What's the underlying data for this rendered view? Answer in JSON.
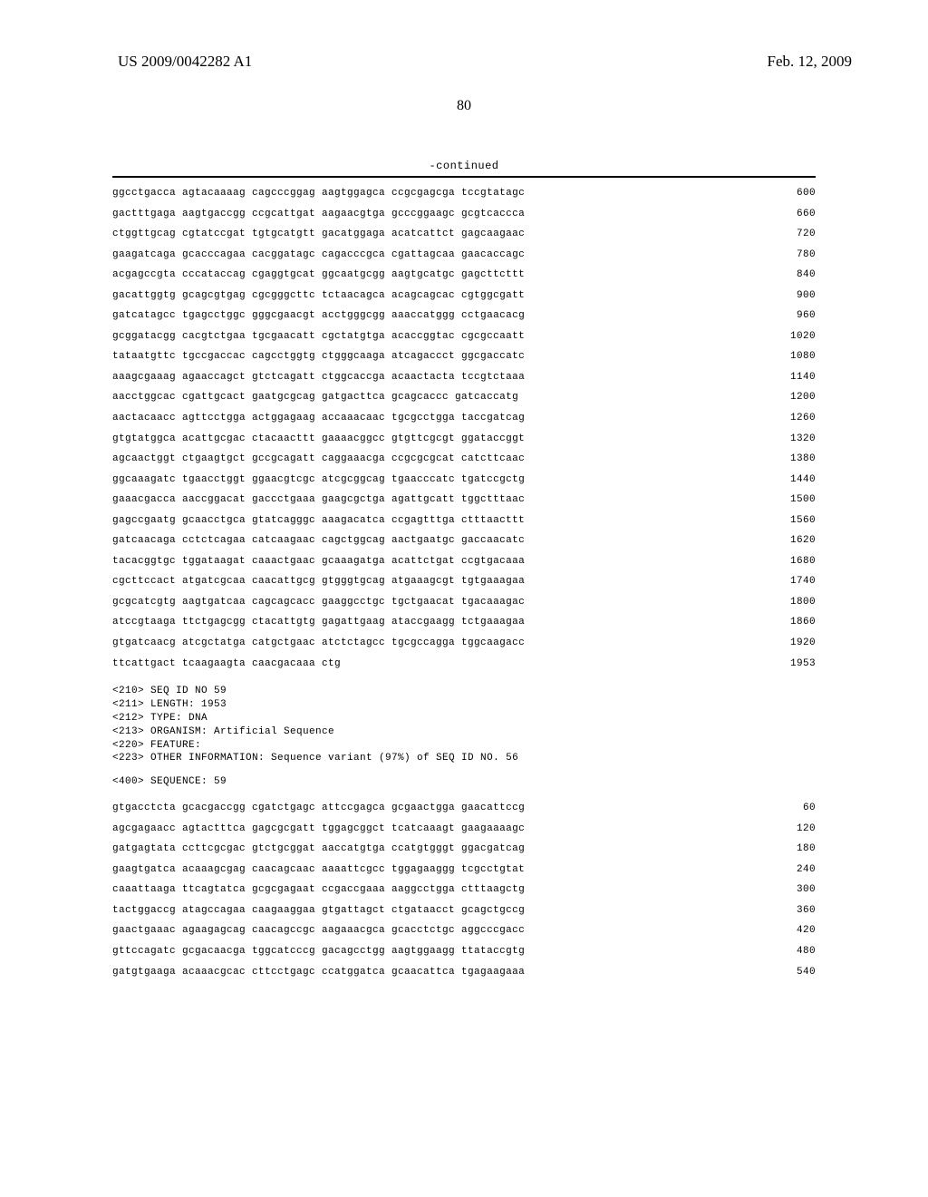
{
  "header": {
    "publication_number": "US 2009/0042282 A1",
    "date": "Feb. 12, 2009"
  },
  "page_number": "80",
  "continued_label": "-continued",
  "sequence1": {
    "lines": [
      {
        "groups": "ggcctgacca agtacaaaag cagcccggag aagtggagca ccgcgagcga tccgtatagc",
        "num": "600"
      },
      {
        "groups": "gactttgaga aagtgaccgg ccgcattgat aagaacgtga gcccggaagc gcgtcaccca",
        "num": "660"
      },
      {
        "groups": "ctggttgcag cgtatccgat tgtgcatgtt gacatggaga acatcattct gagcaagaac",
        "num": "720"
      },
      {
        "groups": "gaagatcaga gcacccagaa cacggatagc cagacccgca cgattagcaa gaacaccagc",
        "num": "780"
      },
      {
        "groups": "acgagccgta cccataccag cgaggtgcat ggcaatgcgg aagtgcatgc gagcttcttt",
        "num": "840"
      },
      {
        "groups": "gacattggtg gcagcgtgag cgcgggcttc tctaacagca acagcagcac cgtggcgatt",
        "num": "900"
      },
      {
        "groups": "gatcatagcc tgagcctggc gggcgaacgt acctgggcgg aaaccatggg cctgaacacg",
        "num": "960"
      },
      {
        "groups": "gcggatacgg cacgtctgaa tgcgaacatt cgctatgtga acaccggtac cgcgccaatt",
        "num": "1020"
      },
      {
        "groups": "tataatgttc tgccgaccac cagcctggtg ctgggcaaga atcagaccct ggcgaccatc",
        "num": "1080"
      },
      {
        "groups": "aaagcgaaag agaaccagct gtctcagatt ctggcaccga acaactacta tccgtctaaa",
        "num": "1140"
      },
      {
        "groups": "aacctggcac cgattgcact gaatgcgcag gatgacttca gcagcaccc gatcaccatg",
        "num": "1200"
      },
      {
        "groups": "aactacaacc agttcctgga actggagaag accaaacaac tgcgcctgga taccgatcag",
        "num": "1260"
      },
      {
        "groups": "gtgtatggca acattgcgac ctacaacttt gaaaacggcc gtgttcgcgt ggataccggt",
        "num": "1320"
      },
      {
        "groups": "agcaactggt ctgaagtgct gccgcagatt caggaaacga ccgcgcgcat catcttcaac",
        "num": "1380"
      },
      {
        "groups": "ggcaaagatc tgaacctggt ggaacgtcgc atcgcggcag tgaacccatc tgatccgctg",
        "num": "1440"
      },
      {
        "groups": "gaaacgacca aaccggacat gaccctgaaa gaagcgctga agattgcatt tggctttaac",
        "num": "1500"
      },
      {
        "groups": "gagccgaatg gcaacctgca gtatcagggc aaagacatca ccgagtttga ctttaacttt",
        "num": "1560"
      },
      {
        "groups": "gatcaacaga cctctcagaa catcaagaac cagctggcag aactgaatgc gaccaacatc",
        "num": "1620"
      },
      {
        "groups": "tacacggtgc tggataagat caaactgaac gcaaagatga acattctgat ccgtgacaaa",
        "num": "1680"
      },
      {
        "groups": "cgcttccact atgatcgcaa caacattgcg gtgggtgcag atgaaagcgt tgtgaaagaa",
        "num": "1740"
      },
      {
        "groups": "gcgcatcgtg aagtgatcaa cagcagcacc gaaggcctgc tgctgaacat tgacaaagac",
        "num": "1800"
      },
      {
        "groups": "atccgtaaga ttctgagcgg ctacattgtg gagattgaag ataccgaagg tctgaaagaa",
        "num": "1860"
      },
      {
        "groups": "gtgatcaacg atcgctatga catgctgaac atctctagcc tgcgccagga tggcaagacc",
        "num": "1920"
      },
      {
        "groups": "ttcattgact tcaagaagta caacgacaaa ctg",
        "num": "1953"
      }
    ]
  },
  "annotation": {
    "lines": [
      "<210> SEQ ID NO 59",
      "<211> LENGTH: 1953",
      "<212> TYPE: DNA",
      "<213> ORGANISM: Artificial Sequence",
      "<220> FEATURE:",
      "<223> OTHER INFORMATION: Sequence variant (97%) of SEQ ID NO. 56"
    ]
  },
  "sequence_header": "<400> SEQUENCE: 59",
  "sequence2": {
    "lines": [
      {
        "groups": "gtgacctcta gcacgaccgg cgatctgagc attccgagca gcgaactgga gaacattccg",
        "num": "60"
      },
      {
        "groups": "agcgagaacc agtactttca gagcgcgatt tggagcggct tcatcaaagt gaagaaaagc",
        "num": "120"
      },
      {
        "groups": "gatgagtata ccttcgcgac gtctgcggat aaccatgtga ccatgtgggt ggacgatcag",
        "num": "180"
      },
      {
        "groups": "gaagtgatca acaaagcgag caacagcaac aaaattcgcc tggagaaggg tcgcctgtat",
        "num": "240"
      },
      {
        "groups": "caaattaaga ttcagtatca gcgcgagaat ccgaccgaaa aaggcctgga ctttaagctg",
        "num": "300"
      },
      {
        "groups": "tactggaccg atagccagaa caagaaggaa gtgattagct ctgataacct gcagctgccg",
        "num": "360"
      },
      {
        "groups": "gaactgaaac agaagagcag caacagccgc aagaaacgca gcacctctgc aggcccgacc",
        "num": "420"
      },
      {
        "groups": "gttccagatc gcgacaacga tggcatcccg gacagcctgg aagtggaagg ttataccgtg",
        "num": "480"
      },
      {
        "groups": "gatgtgaaga acaaacgcac cttcctgagc ccatggatca gcaacattca tgagaagaaa",
        "num": "540"
      }
    ]
  }
}
